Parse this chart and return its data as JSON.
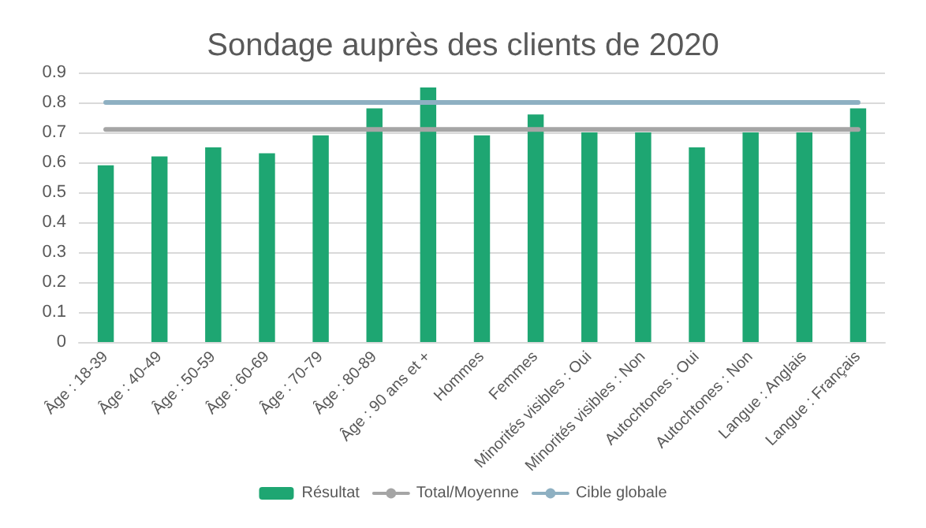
{
  "chart_data": {
    "type": "bar",
    "title": "Sondage auprès des clients de 2020",
    "categories": [
      "Âge : 18-39",
      "Âge : 40-49",
      "Âge : 50-59",
      "Âge : 60-69",
      "Âge : 70-79",
      "Âge : 80-89",
      "Âge : 90 ans et +",
      "Hommes",
      "Femmes",
      "Minorités visibles : Oui",
      "Minorités visibles : Non",
      "Autochtones : Oui",
      "Autochtones : Non",
      "Langue : Anglais",
      "Langue : Français"
    ],
    "series": [
      {
        "name": "Résultat",
        "color": "#1ea672",
        "values": [
          0.59,
          0.62,
          0.65,
          0.63,
          0.69,
          0.78,
          0.85,
          0.69,
          0.76,
          0.7,
          0.7,
          0.65,
          0.7,
          0.7,
          0.78
        ]
      },
      {
        "name": "Total/Moyenne",
        "type": "line",
        "color": "#a5a5a5",
        "values": [
          0.71,
          0.71,
          0.71,
          0.71,
          0.71,
          0.71,
          0.71,
          0.71,
          0.71,
          0.71,
          0.71,
          0.71,
          0.71,
          0.71,
          0.71
        ]
      },
      {
        "name": "Cible globale",
        "type": "line",
        "color": "#8eb0c2",
        "values": [
          0.8,
          0.8,
          0.8,
          0.8,
          0.8,
          0.8,
          0.8,
          0.8,
          0.8,
          0.8,
          0.8,
          0.8,
          0.8,
          0.8,
          0.8
        ]
      }
    ],
    "ylim": [
      0,
      0.9
    ],
    "yticks": [
      0,
      0.1,
      0.2,
      0.3,
      0.4,
      0.5,
      0.6,
      0.7,
      0.8,
      0.9
    ],
    "grid": "y",
    "legend": "bottom",
    "marker": "none"
  }
}
